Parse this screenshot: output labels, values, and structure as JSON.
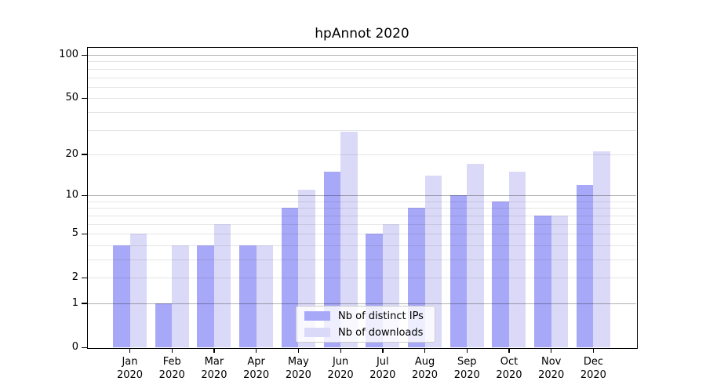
{
  "title": "hpAnnot 2020",
  "chart_data": {
    "type": "bar",
    "title": "hpAnnot 2020",
    "categories": [
      "Jan 2020",
      "Feb 2020",
      "Mar 2020",
      "Apr 2020",
      "May 2020",
      "Jun 2020",
      "Jul 2020",
      "Aug 2020",
      "Sep 2020",
      "Oct 2020",
      "Nov 2020",
      "Dec 2020"
    ],
    "series": [
      {
        "name": "Nb of distinct IPs",
        "color": "#a8a8f8",
        "values": [
          4,
          1,
          4,
          4,
          8,
          15,
          5,
          8,
          10,
          9,
          7,
          12
        ]
      },
      {
        "name": "Nb of downloads",
        "color": "#dadaf8",
        "values": [
          5,
          4,
          6,
          4,
          11,
          29,
          6,
          14,
          17,
          15,
          7,
          21
        ]
      }
    ],
    "xlabel": "",
    "ylabel": "",
    "y_scale": "log10(1+v)",
    "ylim": [
      0,
      112
    ],
    "y_ticks": [
      0,
      1,
      2,
      5,
      10,
      20,
      50,
      100
    ],
    "major_gridlines": [
      1,
      10,
      100
    ],
    "minor_gridlines": [
      2,
      3,
      4,
      5,
      6,
      7,
      8,
      9,
      20,
      30,
      40,
      50,
      60,
      70,
      80,
      90
    ],
    "grid": "on",
    "legend_position": "lower center"
  },
  "colors": {
    "major_grid": "#b0b0b0",
    "minor_grid": "#e5e5e5",
    "spine": "#000000",
    "background": "#ffffff"
  }
}
